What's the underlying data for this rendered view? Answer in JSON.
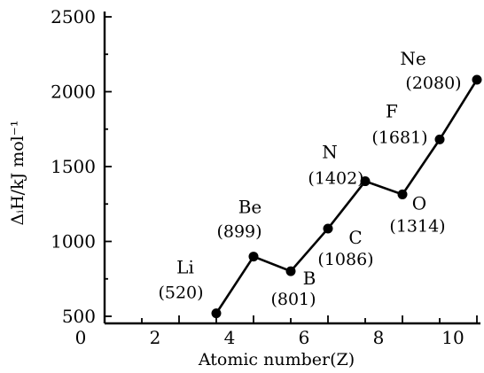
{
  "chart_data": {
    "type": "line",
    "xlabel": "Atomic number(Z)",
    "ylabel": "ΔᵢH/kJ mol⁻¹",
    "xlim": [
      0,
      10
    ],
    "ylim": [
      500,
      2500
    ],
    "xticks": [
      0,
      2,
      4,
      6,
      8,
      10
    ],
    "yticks": [
      500,
      1000,
      1500,
      2000,
      2500
    ],
    "grid": false,
    "series": [
      {
        "points": [
          {
            "x": 3,
            "y": 520,
            "symbol": "Li",
            "value_label": "(520)"
          },
          {
            "x": 4,
            "y": 899,
            "symbol": "Be",
            "value_label": "(899)"
          },
          {
            "x": 5,
            "y": 801,
            "symbol": "B",
            "value_label": "(801)"
          },
          {
            "x": 6,
            "y": 1086,
            "symbol": "C",
            "value_label": "(1086)"
          },
          {
            "x": 7,
            "y": 1402,
            "symbol": "N",
            "value_label": "(1402)"
          },
          {
            "x": 8,
            "y": 1314,
            "symbol": "O",
            "value_label": "(1314)"
          },
          {
            "x": 9,
            "y": 1681,
            "symbol": "F",
            "value_label": "(1681)"
          },
          {
            "x": 10,
            "y": 2080,
            "symbol": "Ne",
            "value_label": "(2080)"
          }
        ]
      }
    ]
  }
}
